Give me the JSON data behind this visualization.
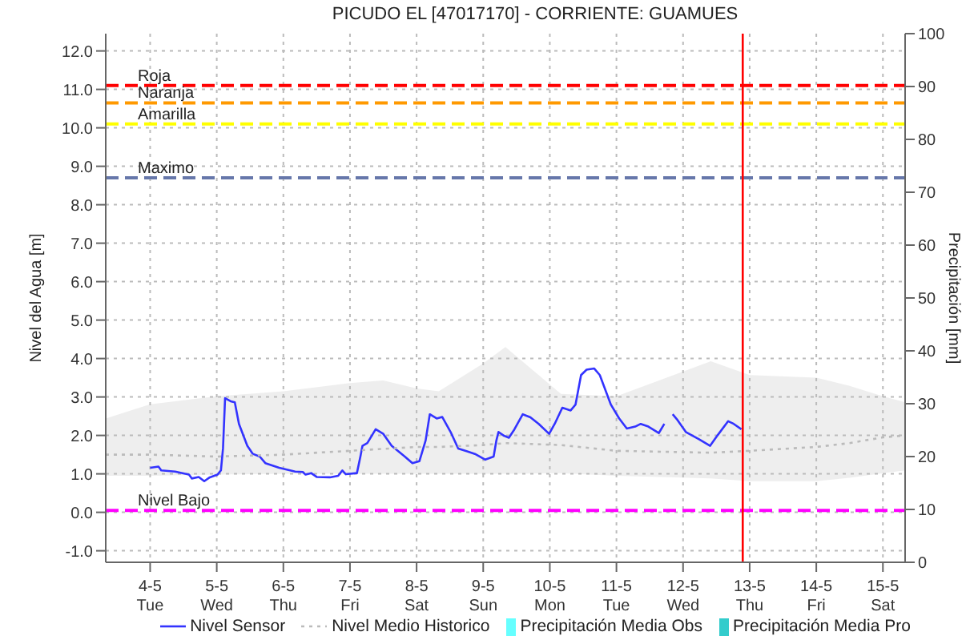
{
  "chart_data": {
    "type": "line",
    "title": "PICUDO EL [47017170] - CORRIENTE: GUAMUES",
    "ylabel": "Nivel del Agua [m]",
    "y2label": "Precipitación [mm]",
    "xlim": [
      "--05-03T08:00",
      "--05-15T08:00"
    ],
    "xticks": [
      {
        "value": "--05-04",
        "label": "4-5\nTue"
      },
      {
        "value": "--05-05",
        "label": "5-5\nWed"
      },
      {
        "value": "--05-06",
        "label": "6-5\nThu"
      },
      {
        "value": "--05-07",
        "label": "7-5\nFri"
      },
      {
        "value": "--05-08",
        "label": "8-5\nSat"
      },
      {
        "value": "--05-09",
        "label": "9-5\nSun"
      },
      {
        "value": "--05-10",
        "label": "10-5\nMon"
      },
      {
        "value": "--05-11",
        "label": "11-5\nTue"
      },
      {
        "value": "--05-12",
        "label": "12-5\nWed"
      },
      {
        "value": "--05-13",
        "label": "13-5\nThu"
      },
      {
        "value": "--05-14",
        "label": "14-5\nFri"
      },
      {
        "value": "--05-15",
        "label": "15-5\nSat"
      }
    ],
    "ylim": [
      -1.3,
      12.45
    ],
    "yticks": [
      {
        "value": -1,
        "label": "-1.0"
      },
      {
        "value": 0,
        "label": "0.0"
      },
      {
        "value": 1,
        "label": "1.0"
      },
      {
        "value": 2,
        "label": "2.0"
      },
      {
        "value": 3,
        "label": "3.0"
      },
      {
        "value": 4,
        "label": "4.0"
      },
      {
        "value": 5,
        "label": "5.0"
      },
      {
        "value": 6,
        "label": "6.0"
      },
      {
        "value": 7,
        "label": "7.0"
      },
      {
        "value": 8,
        "label": "8.0"
      },
      {
        "value": 9,
        "label": "9.0"
      },
      {
        "value": 10,
        "label": "10.0"
      },
      {
        "value": 11,
        "label": "11.0"
      },
      {
        "value": 12,
        "label": "12.0"
      }
    ],
    "y2lim": [
      0,
      100
    ],
    "y2ticks": [
      0,
      10,
      20,
      30,
      40,
      50,
      60,
      70,
      80,
      90,
      100
    ],
    "grid": true,
    "legend": "bottom",
    "ref_lines": [
      {
        "axis": "y",
        "value": 11.1,
        "label": "Roja",
        "color": "#ff0000",
        "line_style": "dashed"
      },
      {
        "axis": "y",
        "value": 10.65,
        "label": "Naranja",
        "color": "#ff9900",
        "line_style": "dashed"
      },
      {
        "axis": "y",
        "value": 10.1,
        "label": "Amarilla",
        "color": "#ffff00",
        "line_style": "dashed"
      },
      {
        "axis": "y",
        "value": 8.7,
        "label": "Maximo",
        "color": "#6677aa",
        "line_style": "dashed"
      },
      {
        "axis": "y",
        "value": 0.05,
        "label": "Nivel Bajo",
        "color": "#ff00ff",
        "line_style": "dashed"
      },
      {
        "axis": "x",
        "value": "--05-12T21:30",
        "color": "#ff0000",
        "line_style": "solid"
      }
    ],
    "series": [
      {
        "name": "Nivel Sensor",
        "type": "line",
        "color": "#3333ff",
        "line_style": "solid",
        "x": [
          "--05-04T00:00",
          "--05-04T03:00",
          "--05-04T04:00",
          "--05-04T09:00",
          "--05-04T14:00",
          "--05-04T15:00",
          "--05-04T17:30",
          "--05-04T19:30",
          "--05-04T21:30",
          "--05-05T00:15",
          "--05-05T01:30",
          "--05-05T02:15",
          "--05-05T03:00",
          "--05-05T05:00",
          "--05-05T06:30",
          "--05-05T08:00",
          "--05-05T11:00",
          "--05-05T13:00",
          "--05-05T15:30",
          "--05-05T17:30",
          "--05-05T22:30",
          "--05-06T04:15",
          "--05-06T07:00",
          "--05-06T08:00",
          "--05-06T10:00",
          "--05-06T12:00",
          "--05-06T16:45",
          "--05-06T19:45",
          "--05-06T21:15",
          "--05-06T22:30",
          "--05-07T02:30",
          "--05-07T03:45",
          "--05-07T04:30",
          "--05-07T06:15",
          "--05-07T09:15",
          "--05-07T12:00",
          "--05-07T15:00",
          "--05-07T19:45",
          "--05-07T22:30",
          "--05-08T01:00",
          "--05-08T03:15",
          "--05-08T04:45",
          "--05-08T07:15",
          "--05-08T09:15",
          "--05-08T12:15",
          "--05-08T15:00",
          "--05-08T18:00",
          "--05-08T21:00",
          "--05-09T00:45",
          "--05-09T03:45",
          "--05-09T04:45",
          "--05-09T05:30",
          "--05-09T07:30",
          "--05-09T09:15",
          "--05-09T11:15",
          "--05-09T14:15",
          "--05-09T17:00",
          "--05-09T20:00",
          "--05-09T23:45",
          "--05-10T01:45",
          "--05-10T04:30",
          "--05-10T07:30",
          "--05-10T09:15",
          "--05-10T11:15",
          "--05-10T13:15",
          "--05-10T16:00",
          "--05-10T18:00",
          "--05-10T22:00",
          "--05-11T01:00",
          "--05-11T03:45",
          "--05-11T06:45",
          "--05-11T08:45",
          "--05-11T11:30",
          "--05-11T15:15",
          "--05-11T17:15",
          "--05-11T18:45",
          "--05-11T20:15",
          "--05-11T22:00",
          "--05-12T01:00",
          "--05-12T05:45",
          "--05-12T09:45",
          "--05-12T12:30",
          "--05-12T16:15",
          "--05-12T18:15",
          "--05-12T21:00"
        ],
        "values": [
          1.16,
          1.19,
          1.09,
          1.06,
          0.98,
          0.88,
          0.92,
          0.81,
          0.91,
          0.98,
          1.09,
          1.66,
          2.97,
          2.89,
          2.86,
          2.3,
          1.73,
          1.52,
          1.45,
          1.28,
          1.16,
          1.06,
          1.05,
          0.98,
          1.02,
          0.92,
          0.91,
          0.95,
          1.09,
          0.99,
          1.02,
          1.45,
          1.73,
          1.8,
          2.16,
          2.04,
          1.73,
          1.45,
          1.28,
          1.33,
          1.87,
          2.55,
          2.44,
          2.48,
          2.09,
          1.66,
          1.59,
          1.52,
          1.37,
          1.45,
          1.87,
          2.09,
          1.99,
          1.94,
          2.16,
          2.55,
          2.47,
          2.3,
          2.04,
          2.3,
          2.72,
          2.65,
          2.8,
          3.57,
          3.71,
          3.74,
          3.57,
          2.8,
          2.44,
          2.18,
          2.23,
          2.3,
          2.23,
          2.06,
          2.3,
          null,
          2.55,
          2.4,
          2.09,
          1.9,
          1.73,
          2.01,
          2.37,
          2.3,
          2.16
        ]
      },
      {
        "name": "Nivel Medio Historico",
        "type": "line",
        "color": "#bbbbbb",
        "line_style": "dotted",
        "x": [
          "--05-03T08:00",
          "--05-04",
          "--05-05",
          "--05-06",
          "--05-07",
          "--05-07T12:00",
          "--05-08",
          "--05-08T08:00",
          "--05-09",
          "--05-09T08:00",
          "--05-10T04:00",
          "--05-11",
          "--05-12T10:00",
          "--05-13",
          "--05-14",
          "--05-14T12:00",
          "--05-15",
          "--05-15T08:00"
        ],
        "values": [
          1.5,
          1.5,
          1.45,
          1.5,
          1.6,
          1.65,
          1.7,
          1.7,
          1.75,
          1.8,
          1.75,
          1.6,
          1.55,
          1.6,
          1.7,
          1.8,
          1.95,
          2.0
        ],
        "lower": [
          0.95,
          0.95,
          0.98,
          1.0,
          1.0,
          1.0,
          1.0,
          1.0,
          1.0,
          1.0,
          1.02,
          0.95,
          0.88,
          0.81,
          0.81,
          0.9,
          1.02,
          1.09
        ],
        "upper": [
          2.44,
          2.81,
          3.02,
          3.15,
          3.36,
          3.43,
          3.22,
          3.15,
          3.87,
          4.3,
          3.08,
          3.02,
          3.93,
          3.57,
          3.5,
          3.29,
          3.02,
          2.86
        ]
      },
      {
        "name": "Precipitación Media Obs",
        "type": "bar",
        "axis": "y2",
        "color": "#66ffff"
      },
      {
        "name": "Precipitación Media Pro",
        "type": "bar",
        "axis": "y2",
        "color": "#33cccc"
      }
    ]
  }
}
